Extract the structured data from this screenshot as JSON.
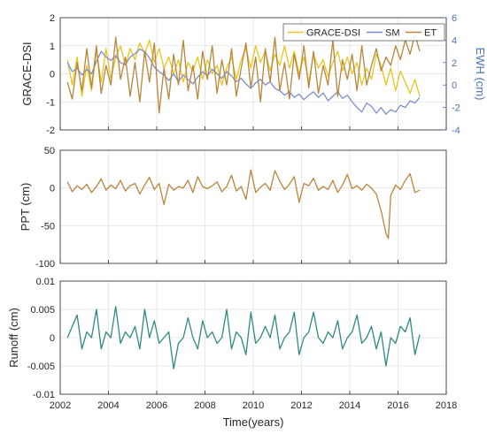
{
  "figure": {
    "xlabel": "Time(years)"
  },
  "chart_data": [
    {
      "type": "line",
      "xlim": [
        2002,
        2018
      ],
      "xticks": [
        "2002",
        "2004",
        "2006",
        "2008",
        "2010",
        "2012",
        "2014",
        "2016",
        "2018"
      ],
      "ylabel": "GRACE-DSI",
      "ylim": [
        -2,
        2
      ],
      "yticks": [
        "-2",
        "-1",
        "0",
        "1",
        "2"
      ],
      "y2label": "EWH (cm)",
      "y2lim": [
        -4,
        6
      ],
      "y2ticks": [
        "-4",
        "-2",
        "0",
        "2",
        "4",
        "6"
      ],
      "grid": true,
      "legend": "top-right",
      "series": [
        {
          "name": "GRACE-DSI",
          "axis": "left",
          "color": "#E6C61C",
          "x": [
            2002.3,
            2002.5,
            2002.7,
            2002.9,
            2003.1,
            2003.3,
            2003.5,
            2003.7,
            2003.9,
            2004.1,
            2004.3,
            2004.5,
            2004.7,
            2004.9,
            2005.1,
            2005.3,
            2005.5,
            2005.7,
            2005.9,
            2006.1,
            2006.3,
            2006.5,
            2006.7,
            2006.9,
            2007.1,
            2007.3,
            2007.5,
            2007.7,
            2007.9,
            2008.1,
            2008.3,
            2008.5,
            2008.7,
            2008.9,
            2009.1,
            2009.3,
            2009.5,
            2009.7,
            2009.9,
            2010.1,
            2010.3,
            2010.5,
            2010.7,
            2010.9,
            2011.1,
            2011.3,
            2011.5,
            2011.7,
            2011.9,
            2012.1,
            2012.3,
            2012.5,
            2012.7,
            2012.9,
            2013.1,
            2013.3,
            2013.5,
            2013.7,
            2013.9,
            2014.1,
            2014.3,
            2014.5,
            2014.7,
            2014.9,
            2015.1,
            2015.3,
            2015.5,
            2015.7,
            2015.9,
            2016.1,
            2016.3,
            2016.5,
            2016.7,
            2016.9
          ],
          "values": [
            0.5,
            -0.4,
            0.6,
            -0.8,
            0.3,
            -0.6,
            0.8,
            -0.3,
            0.9,
            -0.2,
            0.6,
            1.0,
            0.3,
            0.9,
            0.5,
            1.1,
            0.7,
            1.2,
            0.4,
            0.9,
            0.2,
            0.6,
            0.0,
            0.5,
            -0.3,
            0.4,
            0.1,
            0.6,
            -0.2,
            0.5,
            0.0,
            0.3,
            -0.4,
            0.2,
            0.6,
            -0.2,
            0.5,
            0.9,
            0.2,
            1.0,
            0.4,
            0.8,
            0.1,
            0.7,
            0.3,
            1.0,
            0.2,
            0.8,
            0.0,
            0.6,
            -0.3,
            0.7,
            0.2,
            0.5,
            -0.1,
            0.4,
            0.8,
            0.1,
            0.6,
            0.0,
            0.4,
            -0.4,
            0.2,
            -0.2,
            0.7,
            0.3,
            -0.4,
            0.2,
            -0.6,
            0.1,
            -0.3,
            -0.7,
            -0.2,
            -0.8
          ]
        },
        {
          "name": "SM",
          "axis": "right",
          "color": "#7B8FD0",
          "x": [
            2002.3,
            2002.5,
            2002.7,
            2002.9,
            2003.1,
            2003.3,
            2003.5,
            2003.7,
            2003.9,
            2004.1,
            2004.3,
            2004.5,
            2004.7,
            2004.9,
            2005.1,
            2005.3,
            2005.5,
            2005.7,
            2005.9,
            2006.1,
            2006.3,
            2006.5,
            2006.7,
            2006.9,
            2007.1,
            2007.3,
            2007.5,
            2007.7,
            2007.9,
            2008.1,
            2008.3,
            2008.5,
            2008.7,
            2008.9,
            2009.1,
            2009.3,
            2009.5,
            2009.7,
            2009.9,
            2010.1,
            2010.3,
            2010.5,
            2010.7,
            2010.9,
            2011.1,
            2011.3,
            2011.5,
            2011.7,
            2011.9,
            2012.1,
            2012.3,
            2012.5,
            2012.7,
            2012.9,
            2013.1,
            2013.3,
            2013.5,
            2013.7,
            2013.9,
            2014.1,
            2014.3,
            2014.5,
            2014.7,
            2014.9,
            2015.1,
            2015.3,
            2015.5,
            2015.7,
            2015.9,
            2016.1,
            2016.3,
            2016.5,
            2016.7,
            2016.9
          ],
          "values": [
            2.0,
            1.2,
            1.5,
            0.9,
            1.4,
            1.0,
            2.1,
            3.0,
            2.5,
            2.2,
            2.6,
            2.0,
            1.8,
            2.5,
            2.8,
            3.2,
            3.0,
            2.4,
            1.6,
            1.2,
            0.9,
            0.4,
            1.0,
            0.3,
            0.9,
            0.5,
            0.1,
            0.7,
            1.2,
            0.8,
            1.4,
            1.0,
            0.6,
            1.2,
            0.8,
            0.3,
            0.6,
            0.1,
            -0.3,
            0.2,
            0.5,
            0.0,
            0.3,
            -0.3,
            -0.5,
            -0.9,
            -0.6,
            -1.1,
            -0.8,
            -1.3,
            -0.9,
            -0.6,
            -1.1,
            -0.7,
            -1.4,
            -1.0,
            -0.6,
            -1.2,
            -0.9,
            -1.5,
            -2.0,
            -2.4,
            -1.6,
            -1.9,
            -2.5,
            -2.0,
            -2.6,
            -2.2,
            -2.4,
            -1.8,
            -2.0,
            -1.4,
            -1.6,
            -1.1
          ]
        },
        {
          "name": "ET",
          "axis": "left",
          "color": "#B8863B",
          "x": [
            2002.3,
            2002.5,
            2002.7,
            2002.9,
            2003.1,
            2003.3,
            2003.5,
            2003.7,
            2003.9,
            2004.1,
            2004.3,
            2004.5,
            2004.7,
            2004.9,
            2005.1,
            2005.3,
            2005.5,
            2005.7,
            2005.9,
            2006.1,
            2006.3,
            2006.5,
            2006.7,
            2006.9,
            2007.1,
            2007.3,
            2007.5,
            2007.7,
            2007.9,
            2008.1,
            2008.3,
            2008.5,
            2008.7,
            2008.9,
            2009.1,
            2009.3,
            2009.5,
            2009.7,
            2009.9,
            2010.1,
            2010.3,
            2010.5,
            2010.7,
            2010.9,
            2011.1,
            2011.3,
            2011.5,
            2011.7,
            2011.9,
            2012.1,
            2012.3,
            2012.5,
            2012.7,
            2012.9,
            2013.1,
            2013.3,
            2013.5,
            2013.7,
            2013.9,
            2014.1,
            2014.3,
            2014.5,
            2014.7,
            2014.9,
            2015.1,
            2015.3,
            2015.5,
            2015.7,
            2015.9,
            2016.1,
            2016.3,
            2016.5,
            2016.7,
            2016.9
          ],
          "values": [
            -0.3,
            -0.9,
            0.4,
            -0.6,
            0.9,
            -0.5,
            1.0,
            -0.7,
            0.3,
            -0.4,
            1.3,
            -0.2,
            0.6,
            -0.8,
            0.4,
            -1.0,
            0.8,
            -0.3,
            1.1,
            -1.4,
            0.2,
            -0.9,
            0.7,
            -0.4,
            1.2,
            -0.6,
            0.3,
            -0.9,
            0.8,
            -0.2,
            1.0,
            -0.7,
            0.5,
            -0.4,
            0.9,
            -0.8,
            0.2,
            1.1,
            -0.5,
            0.6,
            -1.0,
            0.9,
            -0.3,
            1.3,
            -0.6,
            0.4,
            -0.9,
            0.7,
            -0.2,
            1.0,
            -0.5,
            0.8,
            -0.7,
            0.3,
            -0.4,
            1.2,
            -0.8,
            0.5,
            -0.2,
            0.7,
            -0.6,
            1.0,
            -0.4,
            0.3,
            0.9,
            0.1,
            0.6,
            0.3,
            1.0,
            0.5,
            1.2,
            0.7,
            1.4,
            0.8
          ]
        }
      ]
    },
    {
      "type": "line",
      "xlim": [
        2002,
        2018
      ],
      "xticks": [
        "2002",
        "2004",
        "2006",
        "2008",
        "2010",
        "2012",
        "2014",
        "2016",
        "2018"
      ],
      "ylabel": "PPT (cm)",
      "ylim": [
        -100,
        50
      ],
      "yticks": [
        "-100",
        "-50",
        "0",
        "50"
      ],
      "grid": true,
      "series": [
        {
          "color": "#B8863B",
          "x": [
            2002.3,
            2002.5,
            2002.7,
            2002.9,
            2003.1,
            2003.3,
            2003.5,
            2003.7,
            2003.9,
            2004.1,
            2004.3,
            2004.5,
            2004.7,
            2004.9,
            2005.1,
            2005.3,
            2005.5,
            2005.7,
            2005.9,
            2006.1,
            2006.3,
            2006.5,
            2006.7,
            2006.9,
            2007.1,
            2007.3,
            2007.5,
            2007.7,
            2007.9,
            2008.1,
            2008.3,
            2008.5,
            2008.7,
            2008.9,
            2009.1,
            2009.3,
            2009.5,
            2009.7,
            2009.9,
            2010.1,
            2010.3,
            2010.5,
            2010.7,
            2010.9,
            2011.1,
            2011.3,
            2011.5,
            2011.7,
            2011.9,
            2012.1,
            2012.3,
            2012.5,
            2012.7,
            2012.9,
            2013.1,
            2013.3,
            2013.5,
            2013.7,
            2013.9,
            2014.1,
            2014.3,
            2014.5,
            2014.7,
            2014.9,
            2015.1,
            2015.3,
            2015.5,
            2015.6,
            2015.7,
            2015.9,
            2016.1,
            2016.3,
            2016.5,
            2016.7,
            2016.9
          ],
          "values": [
            8,
            -5,
            3,
            -2,
            5,
            -6,
            2,
            12,
            -3,
            4,
            -1,
            10,
            -4,
            3,
            6,
            -8,
            4,
            14,
            -2,
            6,
            -22,
            5,
            -3,
            2,
            0,
            10,
            -6,
            15,
            2,
            -1,
            3,
            8,
            -5,
            2,
            17,
            -4,
            2,
            -15,
            24,
            -6,
            1,
            6,
            -3,
            23,
            9,
            -2,
            5,
            15,
            -19,
            6,
            3,
            13,
            -3,
            2,
            -2,
            10,
            -6,
            4,
            18,
            -1,
            3,
            -3,
            5,
            0,
            -8,
            -30,
            -60,
            -67,
            -10,
            4,
            -2,
            10,
            19,
            -6,
            -3
          ]
        }
      ]
    },
    {
      "type": "line",
      "xlim": [
        2002,
        2018
      ],
      "xticks": [
        "2002",
        "2004",
        "2006",
        "2008",
        "2010",
        "2012",
        "2014",
        "2016",
        "2018"
      ],
      "ylabel": "Runoff (cm)",
      "ylim": [
        -0.01,
        0.01
      ],
      "yticks": [
        "-0.01",
        "-0.005",
        "0",
        "0.005",
        "0.01"
      ],
      "grid": true,
      "series": [
        {
          "color": "#2E8B82",
          "x": [
            2002.3,
            2002.5,
            2002.7,
            2002.9,
            2003.1,
            2003.3,
            2003.5,
            2003.7,
            2003.9,
            2004.1,
            2004.3,
            2004.5,
            2004.7,
            2004.9,
            2005.1,
            2005.3,
            2005.5,
            2005.7,
            2005.9,
            2006.1,
            2006.3,
            2006.5,
            2006.7,
            2006.9,
            2007.1,
            2007.3,
            2007.5,
            2007.7,
            2007.9,
            2008.1,
            2008.3,
            2008.5,
            2008.7,
            2008.9,
            2009.1,
            2009.3,
            2009.5,
            2009.7,
            2009.9,
            2010.1,
            2010.3,
            2010.5,
            2010.7,
            2010.9,
            2011.1,
            2011.3,
            2011.5,
            2011.7,
            2011.9,
            2012.1,
            2012.3,
            2012.5,
            2012.7,
            2012.9,
            2013.1,
            2013.3,
            2013.5,
            2013.7,
            2013.9,
            2014.1,
            2014.3,
            2014.5,
            2014.7,
            2014.9,
            2015.1,
            2015.3,
            2015.5,
            2015.7,
            2015.9,
            2016.1,
            2016.3,
            2016.5,
            2016.7,
            2016.9
          ],
          "values": [
            0.0,
            0.002,
            0.004,
            -0.002,
            0.001,
            0.0,
            0.005,
            -0.002,
            0.001,
            0.0,
            0.0055,
            -0.001,
            0.001,
            0.0,
            0.002,
            -0.002,
            0.005,
            0.0,
            0.003,
            -0.001,
            0.0,
            0.001,
            -0.0055,
            -0.001,
            0.0,
            0.0035,
            0.0,
            -0.002,
            0.003,
            0.0,
            0.001,
            -0.001,
            0.0,
            0.005,
            -0.002,
            0.001,
            0.0,
            -0.003,
            0.0045,
            -0.001,
            0.0,
            0.002,
            0.0,
            0.004,
            -0.002,
            0.0,
            0.001,
            0.0045,
            -0.003,
            0.0,
            0.001,
            0.0045,
            0.0,
            -0.001,
            0.001,
            0.0,
            0.003,
            -0.002,
            0.0,
            0.001,
            0.004,
            -0.001,
            0.0,
            0.002,
            -0.002,
            0.001,
            -0.005,
            0.0,
            -0.001,
            0.002,
            0.001,
            0.0035,
            -0.003,
            0.0005
          ]
        }
      ]
    }
  ]
}
